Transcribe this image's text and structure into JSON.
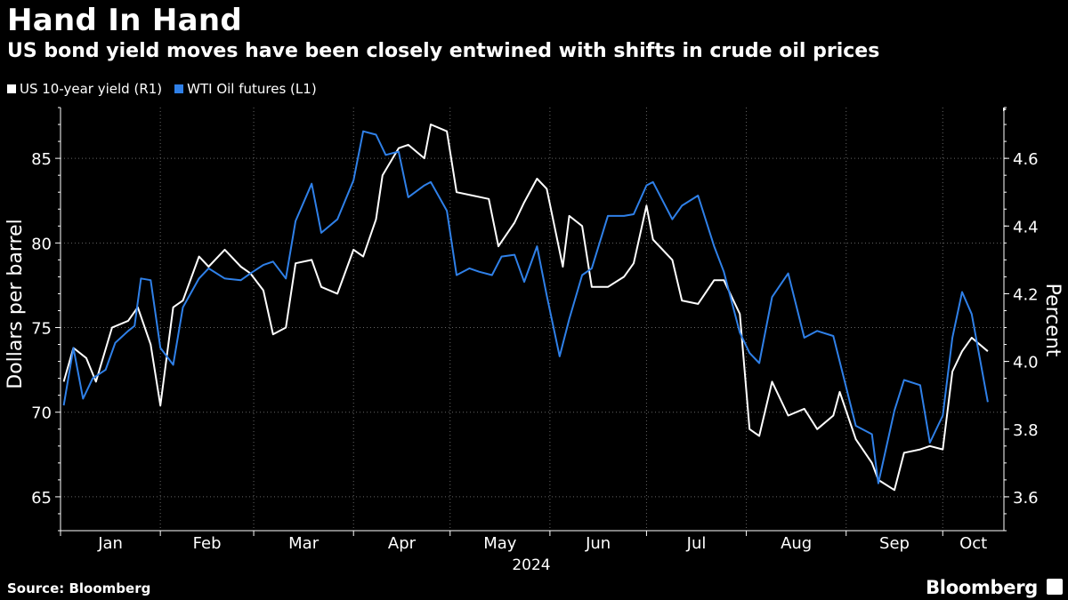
{
  "title": "Hand In Hand",
  "subtitle": "US bond yield moves have been closely entwined with shifts in crude oil prices",
  "legend": {
    "yield_label": "US 10-year yield (R1)",
    "oil_label": "WTI Oil futures (L1)"
  },
  "footer": {
    "source": "Source: Bloomberg",
    "brand": "Bloomberg"
  },
  "colors": {
    "background": "#000000",
    "yield": "#ffffff",
    "oil": "#2f80e8",
    "grid": "#666666",
    "axis": "#ffffff"
  },
  "chart_data": {
    "type": "line",
    "xlabel": "2024",
    "x_ticks": [
      "Jan",
      "Feb",
      "Mar",
      "Apr",
      "May",
      "Jun",
      "Jul",
      "Aug",
      "Sep",
      "Oct"
    ],
    "left_axis": {
      "label": "Dollars per barrel",
      "range": [
        63,
        88
      ],
      "ticks": [
        65,
        70,
        75,
        80,
        85
      ]
    },
    "right_axis": {
      "label": "Percent",
      "range": [
        3.5,
        4.75
      ],
      "ticks": [
        "3.6",
        "3.8",
        "4.0",
        "4.2",
        "4.4",
        "4.6"
      ]
    },
    "grid": "horizontal dotted",
    "legend_position": "top-left",
    "series": [
      {
        "name": "US 10-year yield (R1)",
        "axis": "right",
        "points": [
          [
            "2024-01-02",
            3.94
          ],
          [
            "2024-01-05",
            4.04
          ],
          [
            "2024-01-09",
            4.01
          ],
          [
            "2024-01-12",
            3.94
          ],
          [
            "2024-01-17",
            4.1
          ],
          [
            "2024-01-22",
            4.12
          ],
          [
            "2024-01-25",
            4.16
          ],
          [
            "2024-01-29",
            4.05
          ],
          [
            "2024-02-01",
            3.87
          ],
          [
            "2024-02-05",
            4.16
          ],
          [
            "2024-02-08",
            4.18
          ],
          [
            "2024-02-13",
            4.31
          ],
          [
            "2024-02-16",
            4.28
          ],
          [
            "2024-02-21",
            4.33
          ],
          [
            "2024-02-26",
            4.28
          ],
          [
            "2024-02-29",
            4.26
          ],
          [
            "2024-03-04",
            4.21
          ],
          [
            "2024-03-07",
            4.08
          ],
          [
            "2024-03-11",
            4.1
          ],
          [
            "2024-03-14",
            4.29
          ],
          [
            "2024-03-19",
            4.3
          ],
          [
            "2024-03-22",
            4.22
          ],
          [
            "2024-03-27",
            4.2
          ],
          [
            "2024-04-01",
            4.33
          ],
          [
            "2024-04-04",
            4.31
          ],
          [
            "2024-04-08",
            4.42
          ],
          [
            "2024-04-10",
            4.55
          ],
          [
            "2024-04-15",
            4.63
          ],
          [
            "2024-04-18",
            4.64
          ],
          [
            "2024-04-23",
            4.6
          ],
          [
            "2024-04-25",
            4.7
          ],
          [
            "2024-04-30",
            4.68
          ],
          [
            "2024-05-03",
            4.5
          ],
          [
            "2024-05-08",
            4.49
          ],
          [
            "2024-05-13",
            4.48
          ],
          [
            "2024-05-16",
            4.34
          ],
          [
            "2024-05-21",
            4.41
          ],
          [
            "2024-05-24",
            4.47
          ],
          [
            "2024-05-28",
            4.54
          ],
          [
            "2024-05-31",
            4.51
          ],
          [
            "2024-06-05",
            4.28
          ],
          [
            "2024-06-07",
            4.43
          ],
          [
            "2024-06-11",
            4.4
          ],
          [
            "2024-06-14",
            4.22
          ],
          [
            "2024-06-19",
            4.22
          ],
          [
            "2024-06-24",
            4.25
          ],
          [
            "2024-06-27",
            4.29
          ],
          [
            "2024-07-01",
            4.46
          ],
          [
            "2024-07-03",
            4.36
          ],
          [
            "2024-07-09",
            4.3
          ],
          [
            "2024-07-12",
            4.18
          ],
          [
            "2024-07-17",
            4.17
          ],
          [
            "2024-07-22",
            4.24
          ],
          [
            "2024-07-25",
            4.24
          ],
          [
            "2024-07-30",
            4.14
          ],
          [
            "2024-08-02",
            3.8
          ],
          [
            "2024-08-05",
            3.78
          ],
          [
            "2024-08-09",
            3.94
          ],
          [
            "2024-08-14",
            3.84
          ],
          [
            "2024-08-19",
            3.86
          ],
          [
            "2024-08-23",
            3.8
          ],
          [
            "2024-08-28",
            3.84
          ],
          [
            "2024-08-30",
            3.91
          ],
          [
            "2024-09-04",
            3.77
          ],
          [
            "2024-09-09",
            3.7
          ],
          [
            "2024-09-11",
            3.65
          ],
          [
            "2024-09-16",
            3.62
          ],
          [
            "2024-09-19",
            3.73
          ],
          [
            "2024-09-24",
            3.74
          ],
          [
            "2024-09-27",
            3.75
          ],
          [
            "2024-10-01",
            3.74
          ],
          [
            "2024-10-04",
            3.97
          ],
          [
            "2024-10-07",
            4.03
          ],
          [
            "2024-10-10",
            4.07
          ],
          [
            "2024-10-15",
            4.03
          ]
        ]
      },
      {
        "name": "WTI Oil futures (L1)",
        "axis": "left",
        "points": [
          [
            "2024-01-02",
            70.4
          ],
          [
            "2024-01-05",
            73.8
          ],
          [
            "2024-01-08",
            70.8
          ],
          [
            "2024-01-11",
            72.0
          ],
          [
            "2024-01-15",
            72.5
          ],
          [
            "2024-01-18",
            74.1
          ],
          [
            "2024-01-22",
            74.8
          ],
          [
            "2024-01-24",
            75.1
          ],
          [
            "2024-01-26",
            77.9
          ],
          [
            "2024-01-29",
            77.8
          ],
          [
            "2024-02-01",
            73.8
          ],
          [
            "2024-02-05",
            72.8
          ],
          [
            "2024-02-08",
            76.2
          ],
          [
            "2024-02-13",
            77.9
          ],
          [
            "2024-02-16",
            78.5
          ],
          [
            "2024-02-21",
            77.9
          ],
          [
            "2024-02-26",
            77.8
          ],
          [
            "2024-02-29",
            78.2
          ],
          [
            "2024-03-04",
            78.7
          ],
          [
            "2024-03-07",
            78.9
          ],
          [
            "2024-03-11",
            77.9
          ],
          [
            "2024-03-14",
            81.3
          ],
          [
            "2024-03-19",
            83.5
          ],
          [
            "2024-03-22",
            80.6
          ],
          [
            "2024-03-27",
            81.4
          ],
          [
            "2024-04-01",
            83.7
          ],
          [
            "2024-04-04",
            86.6
          ],
          [
            "2024-04-08",
            86.4
          ],
          [
            "2024-04-11",
            85.2
          ],
          [
            "2024-04-15",
            85.4
          ],
          [
            "2024-04-18",
            82.7
          ],
          [
            "2024-04-23",
            83.4
          ],
          [
            "2024-04-25",
            83.6
          ],
          [
            "2024-04-30",
            81.9
          ],
          [
            "2024-05-03",
            78.1
          ],
          [
            "2024-05-07",
            78.5
          ],
          [
            "2024-05-10",
            78.3
          ],
          [
            "2024-05-14",
            78.1
          ],
          [
            "2024-05-17",
            79.2
          ],
          [
            "2024-05-21",
            79.3
          ],
          [
            "2024-05-24",
            77.7
          ],
          [
            "2024-05-28",
            79.8
          ],
          [
            "2024-05-31",
            76.9
          ],
          [
            "2024-06-04",
            73.3
          ],
          [
            "2024-06-07",
            75.5
          ],
          [
            "2024-06-11",
            78.1
          ],
          [
            "2024-06-14",
            78.5
          ],
          [
            "2024-06-19",
            81.6
          ],
          [
            "2024-06-24",
            81.6
          ],
          [
            "2024-06-27",
            81.7
          ],
          [
            "2024-07-01",
            83.4
          ],
          [
            "2024-07-03",
            83.6
          ],
          [
            "2024-07-09",
            81.4
          ],
          [
            "2024-07-12",
            82.2
          ],
          [
            "2024-07-17",
            82.8
          ],
          [
            "2024-07-22",
            79.8
          ],
          [
            "2024-07-25",
            78.3
          ],
          [
            "2024-07-30",
            74.7
          ],
          [
            "2024-08-02",
            73.5
          ],
          [
            "2024-08-05",
            72.9
          ],
          [
            "2024-08-09",
            76.8
          ],
          [
            "2024-08-14",
            78.2
          ],
          [
            "2024-08-19",
            74.4
          ],
          [
            "2024-08-23",
            74.8
          ],
          [
            "2024-08-28",
            74.5
          ],
          [
            "2024-09-04",
            69.2
          ],
          [
            "2024-09-09",
            68.7
          ],
          [
            "2024-09-11",
            65.8
          ],
          [
            "2024-09-16",
            70.1
          ],
          [
            "2024-09-19",
            71.9
          ],
          [
            "2024-09-24",
            71.6
          ],
          [
            "2024-09-27",
            68.2
          ],
          [
            "2024-10-01",
            69.8
          ],
          [
            "2024-10-04",
            74.4
          ],
          [
            "2024-10-07",
            77.1
          ],
          [
            "2024-10-10",
            75.8
          ],
          [
            "2024-10-15",
            70.6
          ]
        ]
      }
    ]
  }
}
